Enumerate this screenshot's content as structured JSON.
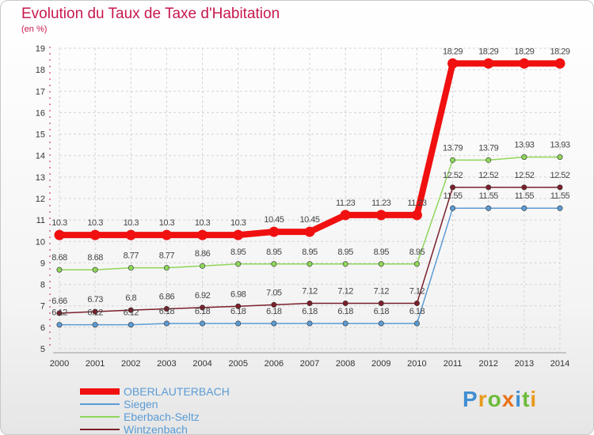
{
  "title": "Evolution du Taux de Taxe d'Habitation",
  "subtitle": "(en %)",
  "logo": {
    "text": "Proxiti",
    "letters": [
      {
        "ch": "P",
        "color": "#3f8fd2"
      },
      {
        "ch": "r",
        "color": "#e89a1c"
      },
      {
        "ch": "o",
        "color": "#6dbb3a"
      },
      {
        "ch": "x",
        "color": "#e8731c"
      },
      {
        "ch": "i",
        "color": "#3f8fd2"
      },
      {
        "ch": "t",
        "color": "#6dbb3a"
      },
      {
        "ch": "i",
        "color": "#e89a1c"
      }
    ]
  },
  "chart_data": {
    "type": "line",
    "x": [
      2000,
      2001,
      2002,
      2003,
      2004,
      2005,
      2006,
      2007,
      2008,
      2009,
      2010,
      2011,
      2012,
      2013,
      2014
    ],
    "ylim": [
      5,
      19
    ],
    "yticks": [
      5,
      6,
      7,
      8,
      9,
      10,
      11,
      12,
      13,
      14,
      15,
      16,
      17,
      18,
      19
    ],
    "grid": true,
    "legend_position": "bottom-left",
    "series": [
      {
        "name": "OBERLAUTERBACH",
        "color": "#f01010",
        "values": [
          10.3,
          10.3,
          10.3,
          10.3,
          10.3,
          10.3,
          10.45,
          10.45,
          11.23,
          11.23,
          11.23,
          18.29,
          18.29,
          18.29,
          18.29
        ],
        "labels": [
          "10.3",
          "10.3",
          "10.3",
          "10.3",
          "10.3",
          "10.3",
          "10.45",
          "10.45",
          "11.23",
          "11.23",
          "11.23",
          "18.29",
          "18.29",
          "18.29",
          "18.29"
        ]
      },
      {
        "name": "Siegen",
        "color": "#5b9bd5",
        "values": [
          6.12,
          6.12,
          6.12,
          6.18,
          6.18,
          6.18,
          6.18,
          6.18,
          6.18,
          6.18,
          6.18,
          11.55,
          11.55,
          11.55,
          11.55
        ],
        "labels": [
          "6.12",
          "6.12",
          "6.12",
          "6.18",
          "6.18",
          "6.18",
          "6.18",
          "6.18",
          "6.18",
          "6.18",
          "6.18",
          "11.55",
          "11.55",
          "11.55",
          "11.55"
        ]
      },
      {
        "name": "Eberbach-Seltz",
        "color": "#8fd65a",
        "values": [
          8.68,
          8.68,
          8.77,
          8.77,
          8.86,
          8.95,
          8.95,
          8.95,
          8.95,
          8.95,
          8.95,
          13.79,
          13.79,
          13.93,
          13.93
        ],
        "labels": [
          "8.68",
          "8.68",
          "8.77",
          "8.77",
          "8.86",
          "8.95",
          "8.95",
          "8.95",
          "8.95",
          "8.95",
          "8.95",
          "13.79",
          "13.79",
          "13.93",
          "13.93"
        ]
      },
      {
        "name": "Wintzenbach",
        "color": "#7a1f2b",
        "values": [
          6.66,
          6.73,
          6.8,
          6.86,
          6.92,
          6.98,
          7.05,
          7.12,
          7.12,
          7.12,
          7.12,
          12.52,
          12.52,
          12.52,
          12.52
        ],
        "labels": [
          "6.66",
          "6.73",
          "6.8",
          "6.86",
          "6.92",
          "6.98",
          "7.05",
          "7.12",
          "7.12",
          "7.12",
          "7.12",
          "12.52",
          "12.52",
          "12.52",
          "12.52"
        ]
      }
    ]
  }
}
